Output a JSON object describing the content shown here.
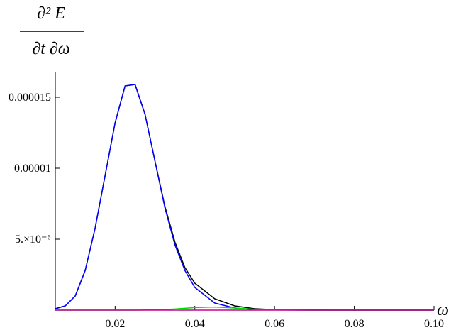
{
  "chart_data": {
    "type": "line",
    "y_label": {
      "numerator": "∂² E",
      "denominator": "∂t ∂ω"
    },
    "x_label": "ω",
    "x": [
      0.005,
      0.0075,
      0.01,
      0.0125,
      0.015,
      0.0175,
      0.02,
      0.0225,
      0.025,
      0.0275,
      0.03,
      0.0325,
      0.035,
      0.0375,
      0.04,
      0.045,
      0.05,
      0.055,
      0.06,
      0.07,
      0.08,
      0.09,
      0.1
    ],
    "series": [
      {
        "color": "#000000",
        "values": [
          1e-07,
          3e-07,
          1e-06,
          2.8e-06,
          5.8e-06,
          9.5e-06,
          1.32e-05,
          1.58e-05,
          1.59e-05,
          1.38e-05,
          1.05e-05,
          7.3e-06,
          4.8e-06,
          3e-06,
          1.9e-06,
          8e-07,
          3e-07,
          1e-07,
          3e-08,
          5e-09,
          0,
          0,
          0
        ]
      },
      {
        "color": "#0000ff",
        "values": [
          1e-07,
          3e-07,
          1e-06,
          2.8e-06,
          5.8e-06,
          9.5e-06,
          1.32e-05,
          1.58e-05,
          1.59e-05,
          1.38e-05,
          1.05e-05,
          7.2e-06,
          4.6e-06,
          2.8e-06,
          1.6e-06,
          5e-07,
          1.5e-07,
          4e-08,
          1e-08,
          0,
          0,
          0,
          0
        ]
      },
      {
        "color": "#00dd00",
        "values": [
          0,
          0,
          0,
          0,
          0,
          0,
          0,
          0,
          0,
          1e-08,
          2e-08,
          4e-08,
          8e-08,
          1.3e-07,
          1.8e-07,
          2.2e-07,
          1.5e-07,
          6e-08,
          2e-08,
          0,
          0,
          0,
          0
        ]
      },
      {
        "color": "#cc0099",
        "values": [
          0,
          0,
          0,
          0,
          0,
          0,
          0,
          0,
          0,
          0,
          0,
          0,
          0,
          0,
          0,
          0,
          0,
          0,
          0,
          0,
          0,
          0,
          0
        ]
      }
    ],
    "xlim": [
      0.005,
      0.1
    ],
    "ylim": [
      0,
      1.65e-05
    ],
    "xticks": [
      0.02,
      0.04,
      0.06,
      0.08,
      {
        "value": 0.1,
        "label": "0.10"
      }
    ],
    "yticks": [
      {
        "value": 5e-06,
        "label": "5.×10⁻⁶"
      },
      1e-05,
      1.5e-05
    ]
  }
}
